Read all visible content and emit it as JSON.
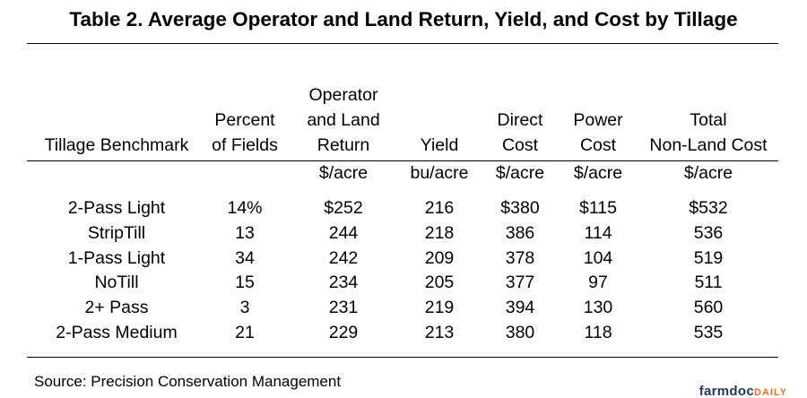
{
  "title": "Table 2.  Average Operator and Land Return, Yield, and Cost by Tillage",
  "columns": [
    {
      "lines": [
        "Tillage Benchmark"
      ],
      "unit": ""
    },
    {
      "lines": [
        "Percent",
        "of Fields"
      ],
      "unit": ""
    },
    {
      "lines": [
        "Operator",
        "and Land",
        "Return"
      ],
      "unit": "$/acre"
    },
    {
      "lines": [
        "Yield"
      ],
      "unit": "bu/acre"
    },
    {
      "lines": [
        "Direct",
        "Cost"
      ],
      "unit": "$/acre"
    },
    {
      "lines": [
        "Power",
        "Cost"
      ],
      "unit": "$/acre"
    },
    {
      "lines": [
        "Total",
        "Non-Land Cost"
      ],
      "unit": "$/acre"
    }
  ],
  "rows": [
    [
      "2-Pass Light",
      "14%",
      "$252",
      "216",
      "$380",
      "$115",
      "$532"
    ],
    [
      "StripTill",
      "13",
      "244",
      "218",
      "386",
      "114",
      "536"
    ],
    [
      "1-Pass Light",
      "34",
      "242",
      "209",
      "378",
      "104",
      "519"
    ],
    [
      "NoTill",
      "15",
      "234",
      "205",
      "377",
      "97",
      "511"
    ],
    [
      "2+ Pass",
      "3",
      "231",
      "219",
      "394",
      "130",
      "560"
    ],
    [
      "2-Pass Medium",
      "21",
      "229",
      "213",
      "380",
      "118",
      "535"
    ]
  ],
  "source": "Source: Precision Conservation Management",
  "logo": {
    "part1": "farmdoc",
    "part2": "DAILY"
  }
}
